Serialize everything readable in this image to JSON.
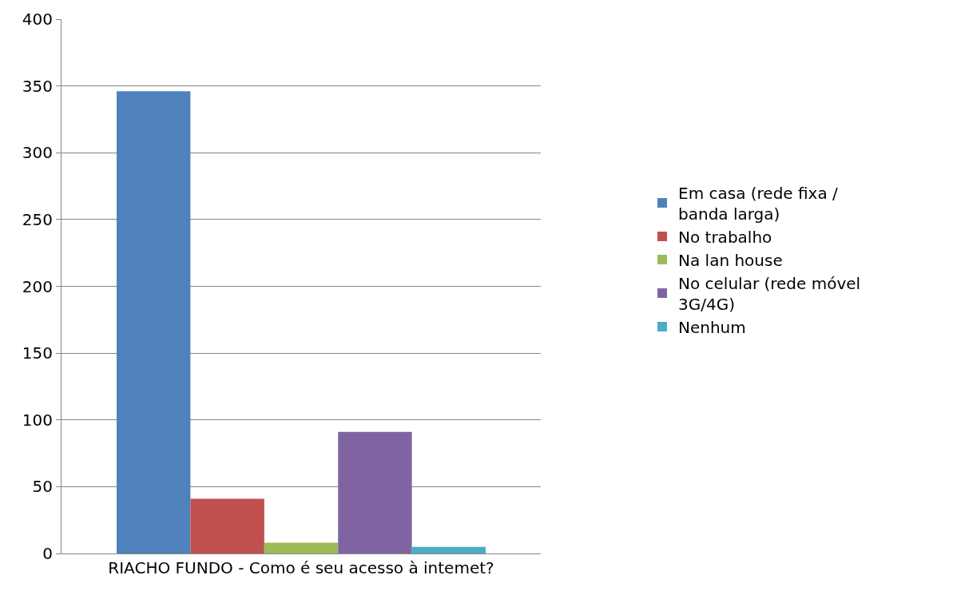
{
  "chart_data": {
    "type": "bar",
    "categories": [
      "RIACHO FUNDO - Como é seu acesso à intemet?"
    ],
    "series": [
      {
        "name": "Em casa (rede fixa / banda larga)",
        "color": "#4f81bd",
        "values": [
          346
        ]
      },
      {
        "name": "No trabalho",
        "color": "#c0504d",
        "values": [
          41
        ]
      },
      {
        "name": "Na lan house",
        "color": "#9bbb59",
        "values": [
          8
        ]
      },
      {
        "name": "No celular (rede móvel 3G/4G)",
        "color": "#8064a2",
        "values": [
          91
        ]
      },
      {
        "name": "Nenhum",
        "color": "#4bacc6",
        "values": [
          5
        ]
      }
    ],
    "ylim": [
      0,
      400
    ],
    "yticks": [
      0,
      50,
      100,
      150,
      200,
      250,
      300,
      350,
      400
    ],
    "grid": "y",
    "legend": "right"
  }
}
